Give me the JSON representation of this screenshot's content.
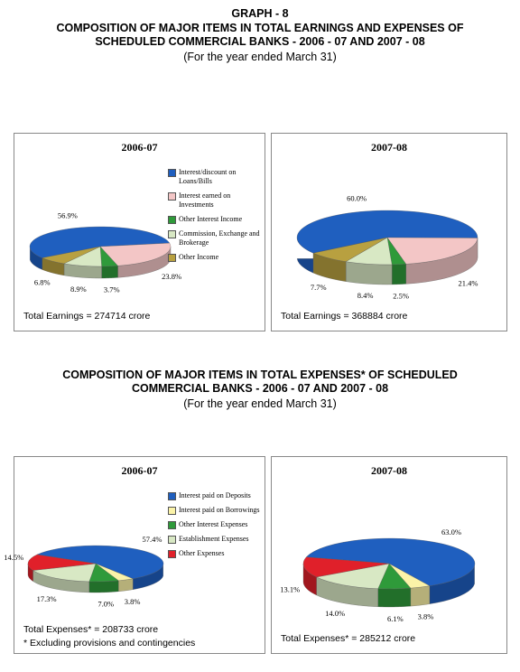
{
  "header": {
    "graph": "GRAPH - 8",
    "title": "COMPOSITION OF MAJOR ITEMS IN TOTAL EARNINGS AND EXPENSES OF SCHEDULED COMMERCIAL BANKS -  2006 - 07 AND 2007 - 08",
    "subtitle": "(For the year ended March 31)"
  },
  "section2": {
    "title": "COMPOSITION OF MAJOR ITEMS IN TOTAL EXPENSES* OF SCHEDULED COMMERCIAL BANKS -  2006 - 07 AND 2007 - 08",
    "subtitle": "(For the year ended March 31)"
  },
  "chart_data": [
    {
      "type": "pie",
      "title": "2006-07",
      "categories": [
        "Interest/discount on Loans/Bills",
        "Interest earned on Investments",
        "Other Interest Income",
        "Commission, Exchange and Brokerage",
        "Other Income"
      ],
      "values": [
        56.9,
        23.8,
        3.7,
        8.9,
        6.8
      ],
      "value_labels": [
        "56.9%",
        "23.8%",
        "3.7%",
        "8.9%",
        "6.8%"
      ],
      "colors": [
        "#1f5fbf",
        "#f3c6c6",
        "#2f9a3a",
        "#d8e8c4",
        "#b8a040"
      ],
      "note": "Total Earnings = 274714 crore"
    },
    {
      "type": "pie",
      "title": "2007-08",
      "values": [
        60.0,
        21.4,
        2.5,
        8.4,
        7.7
      ],
      "value_labels": [
        "60.0%",
        "21.4%",
        "2.5%",
        "8.4%",
        "7.7%"
      ],
      "colors": [
        "#1f5fbf",
        "#f3c6c6",
        "#2f9a3a",
        "#d8e8c4",
        "#b8a040"
      ],
      "note": "Total Earnings = 368884 crore"
    },
    {
      "type": "pie",
      "title": "2006-07",
      "categories": [
        "Interest paid on Deposits",
        "Interest paid on Borrowings",
        "Other Interest Expenses",
        "Establishment Expenses",
        "Other Expenses"
      ],
      "values": [
        57.4,
        3.8,
        7.0,
        17.3,
        14.5
      ],
      "value_labels": [
        "57.4%",
        "3.8%",
        "7.0%",
        "17.3%",
        "14.5%"
      ],
      "colors": [
        "#1f5fbf",
        "#fbf3a8",
        "#2f9a3a",
        "#d8e8c4",
        "#e0202a"
      ],
      "note": "Total Expenses* = 208733 crore",
      "footnote": "* Excluding provisions and contingencies"
    },
    {
      "type": "pie",
      "title": "2007-08",
      "values": [
        63.0,
        3.8,
        6.1,
        14.0,
        13.1
      ],
      "value_labels": [
        "63.0%",
        "3.8%",
        "6.1%",
        "14.0%",
        "13.1%"
      ],
      "colors": [
        "#1f5fbf",
        "#fbf3a8",
        "#2f9a3a",
        "#d8e8c4",
        "#e0202a"
      ],
      "note": "Total Expenses* = 285212 crore"
    }
  ]
}
